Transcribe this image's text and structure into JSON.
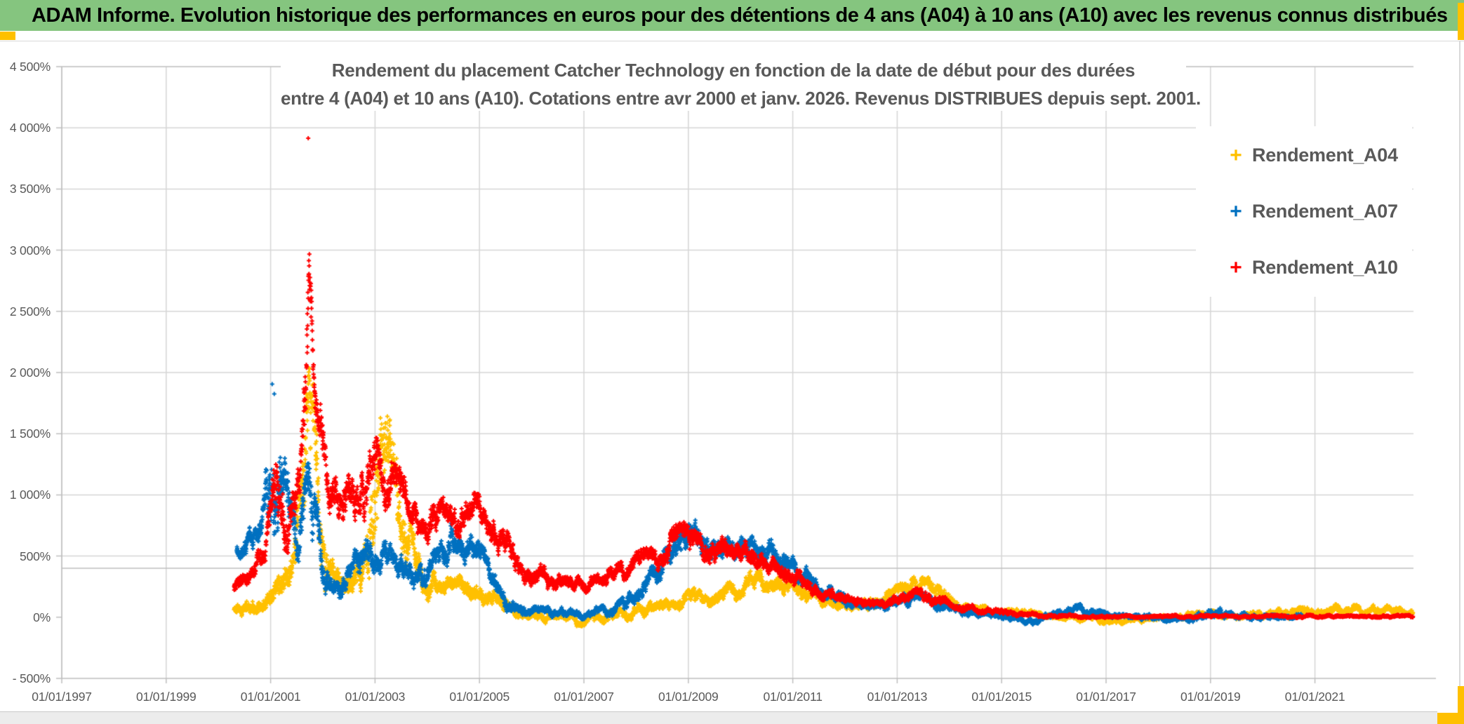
{
  "banner": {
    "text": "ADAM Informe. Evolution historique des performances en euros pour des détentions de 4 ans (A04) à 10 ans (A10) avec les revenus connus distribués"
  },
  "theme": {
    "banner_bg": "#85C57F",
    "banner_text": "#000000",
    "accent_orange": "#FFC000",
    "text_gray": "#595959",
    "gridline": "#D6D6D6",
    "axis_line": "#BFBFBF",
    "plot_bg": "#FFFFFF"
  },
  "chart_data": {
    "type": "scatter",
    "title_line1": "Rendement du placement Catcher Technology  en fonction de la date de début pour des durées",
    "title_line2": "entre 4 (A04) et 10 ans (A10). Cotations entre avr 2000 et janv. 2026. Revenus DISTRIBUES depuis sept. 2001.",
    "grid": true,
    "legend_position": "right-top",
    "x_axis": {
      "type": "date",
      "tick_years": [
        1997,
        1999,
        2001,
        2003,
        2005,
        2007,
        2009,
        2011,
        2013,
        2015,
        2017,
        2019,
        2021
      ],
      "tick_labels": [
        "01/01/1997",
        "01/01/1999",
        "01/01/2001",
        "01/01/2003",
        "01/01/2005",
        "01/01/2007",
        "01/01/2009",
        "01/01/2011",
        "01/01/2013",
        "01/01/2015",
        "01/01/2017",
        "01/01/2019",
        "01/01/2021"
      ],
      "min_year": 1996.8,
      "max_year": 2022.9
    },
    "y_axis": {
      "unit": "%",
      "min": -500,
      "max": 4500,
      "step": 500,
      "tick_values": [
        4500,
        4000,
        3500,
        3000,
        2500,
        2000,
        1500,
        1000,
        500,
        0,
        -500
      ],
      "tick_labels": [
        "4 500%",
        "4 000%",
        "3 500%",
        "3 000%",
        "2 500%",
        "2 000%",
        "1 500%",
        "1 000%",
        "500%",
        "0%",
        "- 500%"
      ]
    },
    "reference_line": {
      "value": 400
    },
    "envelope_format": "[decimal_year, mid_percent, half_spread_percent]",
    "series": [
      {
        "label": "Rendement_A04",
        "color": "#FFC000",
        "marker": "plus",
        "seed": 11,
        "envelope": [
          [
            2000.3,
            60,
            50
          ],
          [
            2000.8,
            110,
            60
          ],
          [
            2001.1,
            330,
            120
          ],
          [
            2001.45,
            520,
            180
          ],
          [
            2001.7,
            1350,
            550
          ],
          [
            2001.82,
            1500,
            400
          ],
          [
            2001.95,
            650,
            280
          ],
          [
            2002.2,
            280,
            120
          ],
          [
            2002.5,
            200,
            80
          ],
          [
            2002.75,
            400,
            150
          ],
          [
            2003.0,
            1050,
            480
          ],
          [
            2003.2,
            1500,
            350
          ],
          [
            2003.45,
            850,
            300
          ],
          [
            2003.7,
            560,
            200
          ],
          [
            2004.0,
            240,
            100
          ],
          [
            2004.4,
            260,
            80
          ],
          [
            2004.9,
            230,
            80
          ],
          [
            2005.3,
            120,
            60
          ],
          [
            2005.8,
            40,
            40
          ],
          [
            2006.3,
            -10,
            40
          ],
          [
            2007.0,
            -30,
            35
          ],
          [
            2007.6,
            10,
            40
          ],
          [
            2008.1,
            50,
            50
          ],
          [
            2008.6,
            90,
            50
          ],
          [
            2009.0,
            150,
            60
          ],
          [
            2009.5,
            170,
            60
          ],
          [
            2010.0,
            230,
            70
          ],
          [
            2010.4,
            330,
            80
          ],
          [
            2010.8,
            280,
            70
          ],
          [
            2011.3,
            190,
            60
          ],
          [
            2011.8,
            130,
            50
          ],
          [
            2012.3,
            100,
            40
          ],
          [
            2012.8,
            140,
            50
          ],
          [
            2013.3,
            260,
            70
          ],
          [
            2013.6,
            240,
            70
          ],
          [
            2014.0,
            130,
            50
          ],
          [
            2014.5,
            70,
            40
          ],
          [
            2015.0,
            40,
            30
          ],
          [
            2015.6,
            25,
            25
          ],
          [
            2016.2,
            10,
            25
          ],
          [
            2016.9,
            -20,
            25
          ],
          [
            2017.5,
            -25,
            25
          ],
          [
            2018.1,
            5,
            25
          ],
          [
            2018.7,
            15,
            25
          ],
          [
            2019.3,
            20,
            30
          ],
          [
            2019.9,
            25,
            30
          ],
          [
            2020.5,
            30,
            35
          ],
          [
            2021.0,
            55,
            40
          ],
          [
            2021.5,
            60,
            40
          ],
          [
            2022.0,
            50,
            35
          ],
          [
            2022.5,
            55,
            35
          ],
          [
            2022.88,
            45,
            30
          ]
        ],
        "outliers": []
      },
      {
        "label": "Rendement_A07",
        "color": "#0070C0",
        "marker": "plus",
        "seed": 22,
        "envelope": [
          [
            2000.35,
            560,
            80
          ],
          [
            2000.6,
            650,
            90
          ],
          [
            2000.85,
            820,
            130
          ],
          [
            2001.05,
            1300,
            450
          ],
          [
            2001.3,
            900,
            250
          ],
          [
            2001.5,
            620,
            150
          ],
          [
            2001.75,
            1000,
            300
          ],
          [
            2002.0,
            380,
            150
          ],
          [
            2002.3,
            220,
            80
          ],
          [
            2002.6,
            420,
            120
          ],
          [
            2002.9,
            480,
            120
          ],
          [
            2003.2,
            520,
            110
          ],
          [
            2003.5,
            430,
            100
          ],
          [
            2003.8,
            340,
            90
          ],
          [
            2004.1,
            400,
            100
          ],
          [
            2004.5,
            650,
            120
          ],
          [
            2004.75,
            500,
            110
          ],
          [
            2005.0,
            560,
            110
          ],
          [
            2005.3,
            220,
            90
          ],
          [
            2005.6,
            90,
            50
          ],
          [
            2006.0,
            60,
            40
          ],
          [
            2006.5,
            40,
            35
          ],
          [
            2007.0,
            20,
            30
          ],
          [
            2007.5,
            60,
            40
          ],
          [
            2008.0,
            180,
            70
          ],
          [
            2008.4,
            350,
            90
          ],
          [
            2008.8,
            600,
            130
          ],
          [
            2009.0,
            750,
            130
          ],
          [
            2009.3,
            600,
            100
          ],
          [
            2009.6,
            620,
            100
          ],
          [
            2010.0,
            580,
            100
          ],
          [
            2010.3,
            630,
            100
          ],
          [
            2010.7,
            480,
            90
          ],
          [
            2011.0,
            420,
            80
          ],
          [
            2011.4,
            280,
            70
          ],
          [
            2011.9,
            170,
            60
          ],
          [
            2012.4,
            110,
            45
          ],
          [
            2012.9,
            130,
            50
          ],
          [
            2013.3,
            160,
            50
          ],
          [
            2013.7,
            120,
            45
          ],
          [
            2014.1,
            70,
            35
          ],
          [
            2014.6,
            30,
            30
          ],
          [
            2015.1,
            0,
            25
          ],
          [
            2015.6,
            -35,
            25
          ],
          [
            2016.0,
            10,
            30
          ],
          [
            2016.5,
            60,
            35
          ],
          [
            2017.0,
            10,
            25
          ],
          [
            2017.5,
            -5,
            20
          ],
          [
            2018.0,
            0,
            20
          ],
          [
            2018.5,
            -30,
            25
          ],
          [
            2019.0,
            60,
            40
          ],
          [
            2019.4,
            10,
            25
          ],
          [
            2020.0,
            10,
            25
          ],
          [
            2020.75,
            5,
            20
          ]
        ],
        "outliers": [
          [
            2001.03,
            1905
          ],
          [
            2001.07,
            1825
          ]
        ]
      },
      {
        "label": "Rendement_A10",
        "color": "#FF0000",
        "marker": "plus",
        "seed": 33,
        "envelope": [
          [
            2000.3,
            240,
            60
          ],
          [
            2000.6,
            320,
            70
          ],
          [
            2000.9,
            520,
            110
          ],
          [
            2001.1,
            950,
            300
          ],
          [
            2001.35,
            700,
            200
          ],
          [
            2001.55,
            900,
            250
          ],
          [
            2001.68,
            2000,
            350
          ],
          [
            2001.74,
            2850,
            400
          ],
          [
            2001.82,
            2100,
            150
          ],
          [
            2001.92,
            1500,
            250
          ],
          [
            2002.1,
            1050,
            200
          ],
          [
            2002.3,
            950,
            180
          ],
          [
            2002.5,
            1150,
            180
          ],
          [
            2002.7,
            900,
            180
          ],
          [
            2002.9,
            1150,
            220
          ],
          [
            2003.1,
            1200,
            200
          ],
          [
            2003.35,
            1050,
            180
          ],
          [
            2003.6,
            950,
            150
          ],
          [
            2003.85,
            700,
            130
          ],
          [
            2004.1,
            800,
            140
          ],
          [
            2004.4,
            950,
            140
          ],
          [
            2004.7,
            750,
            120
          ],
          [
            2004.95,
            900,
            120
          ],
          [
            2005.2,
            620,
            110
          ],
          [
            2005.45,
            700,
            120
          ],
          [
            2005.7,
            450,
            100
          ],
          [
            2006.0,
            350,
            80
          ],
          [
            2006.4,
            300,
            70
          ],
          [
            2006.8,
            260,
            60
          ],
          [
            2007.2,
            280,
            60
          ],
          [
            2007.6,
            330,
            70
          ],
          [
            2008.0,
            420,
            80
          ],
          [
            2008.4,
            500,
            90
          ],
          [
            2008.8,
            620,
            110
          ],
          [
            2009.0,
            680,
            110
          ],
          [
            2009.3,
            520,
            90
          ],
          [
            2009.6,
            560,
            90
          ],
          [
            2009.9,
            480,
            80
          ],
          [
            2010.2,
            540,
            90
          ],
          [
            2010.5,
            460,
            80
          ],
          [
            2010.9,
            380,
            70
          ],
          [
            2011.2,
            300,
            60
          ],
          [
            2011.6,
            190,
            50
          ],
          [
            2012.0,
            130,
            40
          ],
          [
            2012.5,
            100,
            35
          ],
          [
            2013.0,
            150,
            40
          ],
          [
            2013.4,
            190,
            45
          ],
          [
            2013.8,
            130,
            40
          ],
          [
            2014.2,
            90,
            30
          ],
          [
            2014.7,
            50,
            25
          ],
          [
            2015.2,
            25,
            20
          ],
          [
            2015.7,
            15,
            15
          ],
          [
            2016.2,
            10,
            12
          ],
          [
            2017.0,
            8,
            10
          ],
          [
            2018.0,
            6,
            10
          ],
          [
            2019.0,
            8,
            10
          ],
          [
            2020.0,
            6,
            10
          ],
          [
            2021.0,
            6,
            10
          ],
          [
            2022.0,
            6,
            10
          ],
          [
            2022.88,
            6,
            10
          ]
        ],
        "outliers": [
          [
            2001.72,
            3915
          ]
        ]
      }
    ]
  }
}
